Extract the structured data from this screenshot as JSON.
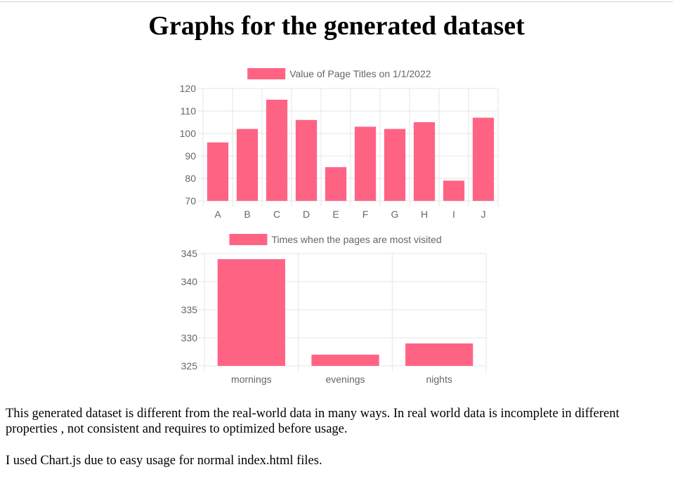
{
  "page": {
    "title": "Graphs for the generated dataset",
    "paragraph_1": "This generated dataset is different from the real-world data in many ways. In real world data is incomplete in different properties , not consistent and requires to optimized before usage.",
    "paragraph_2": "I used Chart.js due to easy usage for normal index.html files."
  },
  "colors": {
    "bar": "#ff6384",
    "grid": "#e5e5e5",
    "text": "#666666"
  },
  "chart_data": [
    {
      "type": "bar",
      "categories": [
        "A",
        "B",
        "C",
        "D",
        "E",
        "F",
        "G",
        "H",
        "I",
        "J"
      ],
      "series": [
        {
          "name": "Value of Page Titles on 1/1/2022",
          "values": [
            96,
            102,
            115,
            106,
            85,
            103,
            102,
            105,
            79,
            107
          ]
        }
      ],
      "ylim": [
        70,
        120
      ],
      "yticks": [
        70,
        80,
        90,
        100,
        110,
        120
      ],
      "grid": true,
      "legend": "top"
    },
    {
      "type": "bar",
      "categories": [
        "mornings",
        "evenings",
        "nights"
      ],
      "series": [
        {
          "name": "Times when the pages are most visited",
          "values": [
            344,
            327,
            329
          ]
        }
      ],
      "ylim": [
        325,
        345
      ],
      "yticks": [
        325,
        330,
        335,
        340,
        345
      ],
      "grid": true,
      "legend": "top"
    }
  ]
}
